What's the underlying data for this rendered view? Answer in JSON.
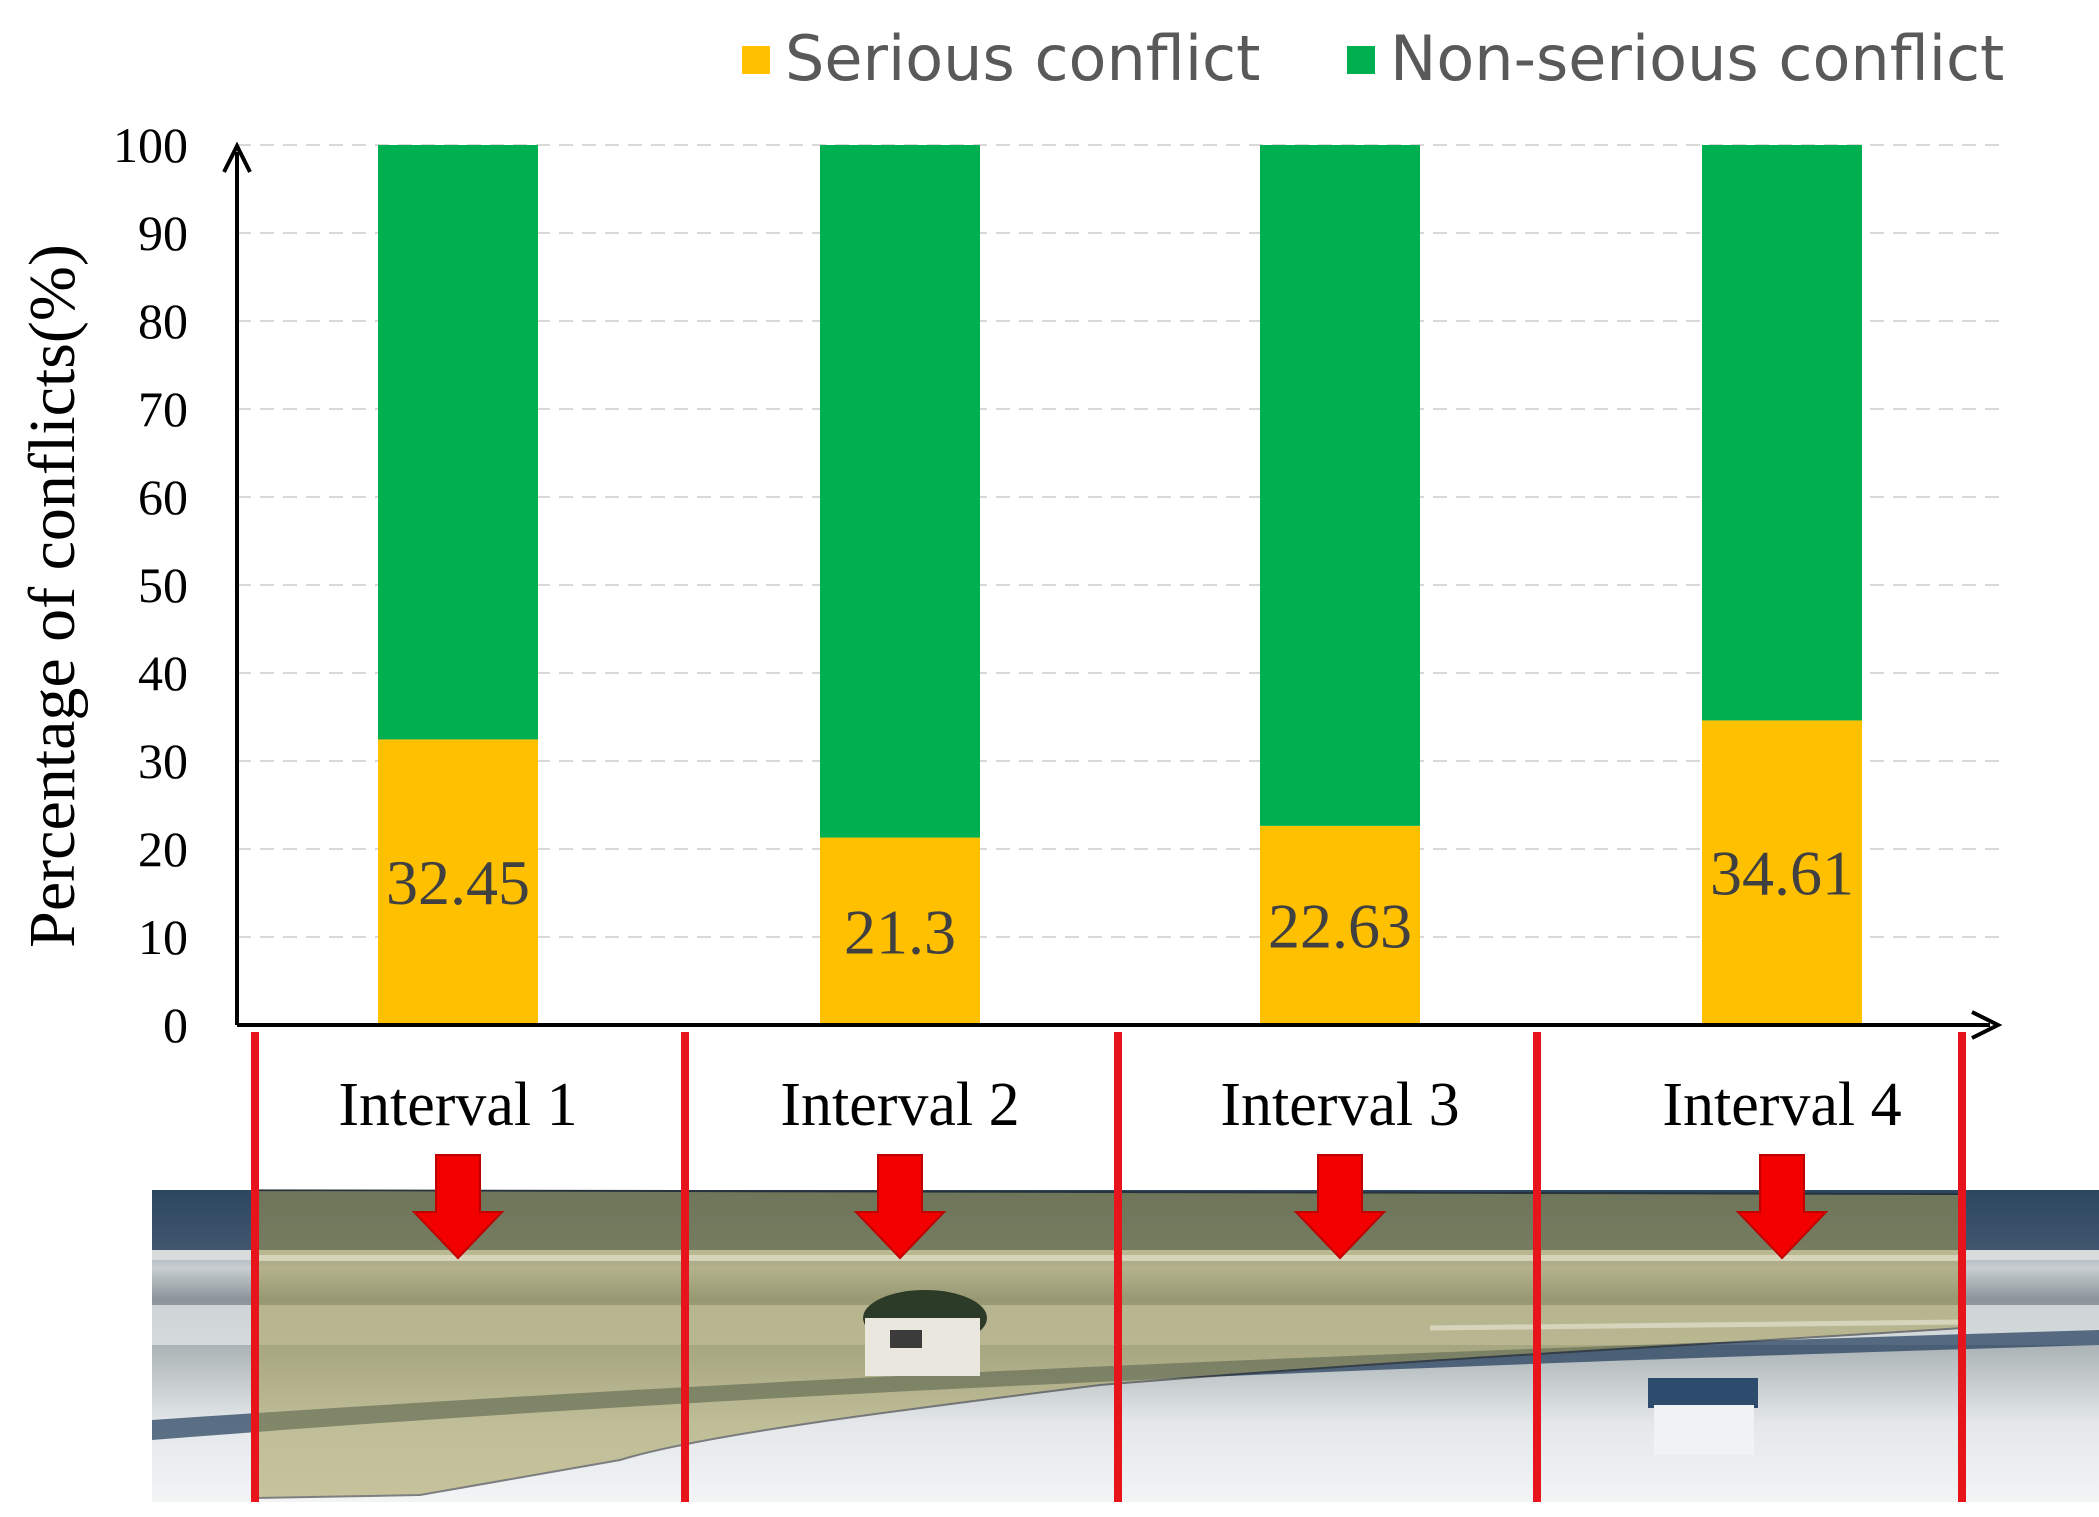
{
  "chart_data": {
    "type": "bar",
    "stacked": true,
    "categories": [
      "Interval 1",
      "Interval 2",
      "Interval 3",
      "Interval 4"
    ],
    "series": [
      {
        "name": "Serious conflict",
        "color": "#FFC000",
        "values": [
          32.45,
          21.3,
          22.63,
          34.61
        ]
      },
      {
        "name": "Non-serious conflict",
        "color": "#00B050",
        "values": [
          67.55,
          78.7,
          77.37,
          65.39
        ]
      }
    ],
    "data_labels": [
      "32.45",
      "21.3",
      "22.63",
      "34.61"
    ],
    "title": "",
    "xlabel": "",
    "ylabel": "Percentage  of conflicts(%)",
    "ylim": [
      0,
      100
    ],
    "yticks": [
      0,
      10,
      20,
      30,
      40,
      50,
      60,
      70,
      80,
      90,
      100
    ],
    "grid": "horizontal-dashed",
    "legend": "top-right",
    "colors": {
      "serious": "#FFC000",
      "non_serious": "#00B050",
      "divider": "#E8141C",
      "arrow": "#F20000",
      "grid": "#D9D9D9"
    },
    "footer_image": "aerial-road-photo"
  }
}
